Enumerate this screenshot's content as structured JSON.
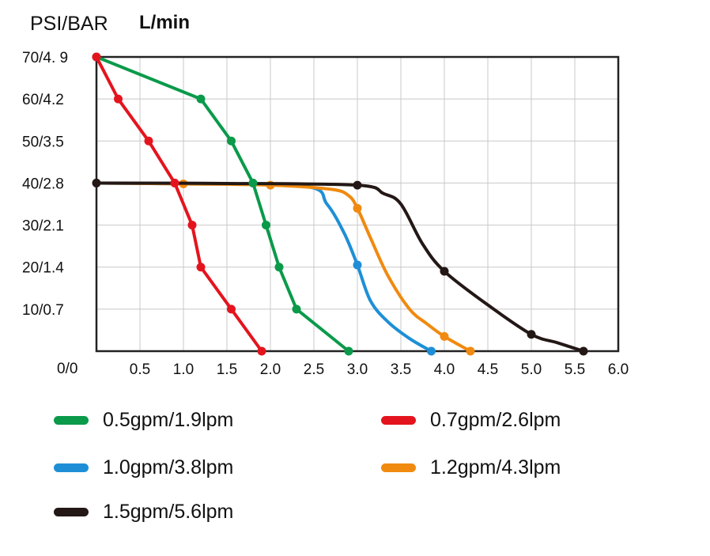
{
  "chart_data": {
    "type": "line",
    "title_left": "PSI/BAR",
    "title_right": "L/min",
    "x_ticks": [
      "0.5",
      "1.0",
      "1.5",
      "2.0",
      "2.5",
      "3.0",
      "3.5",
      "4.0",
      "4.5",
      "5.0",
      "5.5",
      "6.0"
    ],
    "y_ticks": [
      "70/4. 9",
      "60/4.2",
      "50/3.5",
      "40/2.8",
      "30/2.1",
      "20/1.4",
      "10/0.7"
    ],
    "origin_label": "0/0",
    "xlim": [
      0,
      6
    ],
    "ylim": [
      0,
      70
    ],
    "series": [
      {
        "name": "0.5gpm/1.9lpm",
        "color": "#0a9a4a",
        "points": [
          [
            0,
            70
          ],
          [
            1.2,
            60
          ],
          [
            1.55,
            50
          ],
          [
            1.8,
            40
          ],
          [
            1.95,
            30
          ],
          [
            2.1,
            20
          ],
          [
            2.3,
            10
          ],
          [
            2.9,
            0
          ]
        ],
        "markers": [
          [
            0,
            70
          ],
          [
            1.2,
            60
          ],
          [
            1.55,
            50
          ],
          [
            1.8,
            40
          ],
          [
            1.95,
            30
          ],
          [
            2.1,
            20
          ],
          [
            2.3,
            10
          ],
          [
            2.9,
            0
          ]
        ]
      },
      {
        "name": "0.7gpm/2.6lpm",
        "color": "#e4141e",
        "points": [
          [
            0,
            70
          ],
          [
            0.25,
            60
          ],
          [
            0.6,
            50
          ],
          [
            0.9,
            40
          ],
          [
            1.1,
            30
          ],
          [
            1.2,
            20
          ],
          [
            1.55,
            10
          ],
          [
            1.9,
            0
          ]
        ],
        "markers": [
          [
            0,
            70
          ],
          [
            0.25,
            60
          ],
          [
            0.6,
            50
          ],
          [
            0.9,
            40
          ],
          [
            1.1,
            30
          ],
          [
            1.2,
            20
          ],
          [
            1.55,
            10
          ],
          [
            1.9,
            0
          ]
        ]
      },
      {
        "name": "1.0gpm/3.8lpm",
        "color": "#1e8fd6",
        "points": [
          [
            0,
            40
          ],
          [
            1.0,
            39.8
          ],
          [
            2.4,
            39.2
          ],
          [
            2.65,
            35
          ],
          [
            2.85,
            28
          ],
          [
            3.0,
            20.5
          ],
          [
            3.15,
            12
          ],
          [
            3.35,
            7
          ],
          [
            3.6,
            3
          ],
          [
            3.85,
            0
          ]
        ],
        "markers": [
          [
            3.0,
            20.5
          ],
          [
            3.85,
            0
          ]
        ]
      },
      {
        "name": "1.2gpm/4.3lpm",
        "color": "#f08a10",
        "points": [
          [
            0,
            40
          ],
          [
            1.0,
            39.8
          ],
          [
            2.0,
            39.5
          ],
          [
            2.7,
            38.5
          ],
          [
            2.9,
            37
          ],
          [
            3.0,
            34
          ],
          [
            3.15,
            27
          ],
          [
            3.35,
            18
          ],
          [
            3.6,
            10
          ],
          [
            3.8,
            6.5
          ],
          [
            4.0,
            3.5
          ],
          [
            4.3,
            0
          ]
        ],
        "markers": [
          [
            1.0,
            39.8
          ],
          [
            2.0,
            39.5
          ],
          [
            3.0,
            34
          ],
          [
            4.0,
            3.5
          ],
          [
            4.3,
            0
          ]
        ]
      },
      {
        "name": "1.5gpm/5.6lpm",
        "color": "#231815",
        "points": [
          [
            0,
            40
          ],
          [
            1.5,
            39.9
          ],
          [
            3.0,
            39.5
          ],
          [
            3.3,
            37.5
          ],
          [
            3.5,
            35
          ],
          [
            3.75,
            25.5
          ],
          [
            4.0,
            19
          ],
          [
            4.5,
            11
          ],
          [
            5.0,
            4
          ],
          [
            5.3,
            2
          ],
          [
            5.6,
            0
          ]
        ],
        "markers": [
          [
            0,
            40
          ],
          [
            3.0,
            39.5
          ],
          [
            4.0,
            19
          ],
          [
            5.0,
            4
          ],
          [
            5.6,
            0
          ]
        ]
      }
    ]
  },
  "legend": [
    {
      "label": "0.5gpm/1.9lpm",
      "color": "#0a9a4a"
    },
    {
      "label": "0.7gpm/2.6lpm",
      "color": "#e4141e"
    },
    {
      "label": "1.0gpm/3.8lpm",
      "color": "#1e8fd6"
    },
    {
      "label": "1.2gpm/4.3lpm",
      "color": "#f08a10"
    },
    {
      "label": "1.5gpm/5.6lpm",
      "color": "#231815"
    }
  ]
}
